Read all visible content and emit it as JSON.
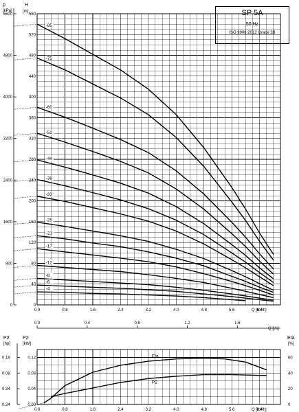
{
  "title_box": {
    "model": "SP 5A",
    "frequency": "50 Hz",
    "standard": "ISO 9906:2012 Grace 3B"
  },
  "chart_data": [
    {
      "type": "line",
      "title": "",
      "xlabel": "Q [m³/h]",
      "xlim": [
        0,
        7
      ],
      "xticks": [
        0.0,
        0.8,
        1.6,
        2.4,
        3.2,
        4.0,
        4.8,
        5.6,
        6.4
      ],
      "x_secondary_label": "Q [l/s]",
      "x_secondary_ticks": [
        0.0,
        0.4,
        0.8,
        1.2,
        1.6
      ],
      "ylabel_left": "p [kPa]",
      "yticks_left": [
        0,
        800,
        1600,
        2400,
        3200,
        4000,
        4800,
        5600
      ],
      "ylabel_right": "H [m]",
      "ylim": [
        0,
        560
      ],
      "yticks_right": [
        0,
        40,
        80,
        120,
        160,
        200,
        240,
        280,
        320,
        360,
        400,
        440,
        480,
        520,
        560
      ],
      "grid": true,
      "series": [
        {
          "name": "-85",
          "x": [
            0,
            0.8,
            1.6,
            2.4,
            3.2,
            4.0,
            4.8,
            5.6,
            6.0,
            6.4,
            6.8
          ],
          "y": [
            540,
            512,
            482,
            452,
            415,
            366,
            302,
            226,
            184,
            138,
            97
          ]
        },
        {
          "name": "-75",
          "x": [
            0,
            0.8,
            1.6,
            2.4,
            3.2,
            4.0,
            4.8,
            5.6,
            6.0,
            6.4,
            6.8
          ],
          "y": [
            475,
            452,
            425,
            398,
            366,
            322,
            266,
            198,
            162,
            122,
            86
          ]
        },
        {
          "name": "-60",
          "x": [
            0,
            0.8,
            1.6,
            2.4,
            3.2,
            4.0,
            4.8,
            5.6,
            6.0,
            6.4,
            6.8
          ],
          "y": [
            380,
            361,
            340,
            318,
            293,
            258,
            213,
            159,
            130,
            98,
            69
          ]
        },
        {
          "name": "-52",
          "x": [
            0,
            0.8,
            1.6,
            2.4,
            3.2,
            4.0,
            4.8,
            5.6,
            6.0,
            6.4,
            6.8
          ],
          "y": [
            330,
            313,
            295,
            276,
            254,
            223,
            184,
            137,
            112,
            84,
            59
          ]
        },
        {
          "name": "-44",
          "x": [
            0,
            0.8,
            1.6,
            2.4,
            3.2,
            4.0,
            4.8,
            5.6,
            6.0,
            6.4,
            6.8
          ],
          "y": [
            279,
            265,
            250,
            234,
            215,
            189,
            156,
            116,
            95,
            71,
            50
          ]
        },
        {
          "name": "-38",
          "x": [
            0,
            0.8,
            1.6,
            2.4,
            3.2,
            4.0,
            4.8,
            5.6,
            6.0,
            6.4,
            6.8
          ],
          "y": [
            241,
            229,
            216,
            202,
            185,
            163,
            135,
            100,
            82,
            62,
            43
          ]
        },
        {
          "name": "-33",
          "x": [
            0,
            0.8,
            1.6,
            2.4,
            3.2,
            4.0,
            4.8,
            5.6,
            6.0,
            6.4,
            6.8
          ],
          "y": [
            209,
            199,
            187,
            175,
            161,
            142,
            117,
            87,
            71,
            54,
            37
          ]
        },
        {
          "name": "-25",
          "x": [
            0,
            0.8,
            1.6,
            2.4,
            3.2,
            4.0,
            4.8,
            5.6,
            6.0,
            6.4,
            6.8
          ],
          "y": [
            159,
            151,
            142,
            133,
            122,
            107,
            89,
            66,
            54,
            41,
            28
          ]
        },
        {
          "name": "-21",
          "x": [
            0,
            0.8,
            1.6,
            2.4,
            3.2,
            4.0,
            4.8,
            5.6,
            6.0,
            6.4,
            6.8
          ],
          "y": [
            133,
            127,
            119,
            112,
            102,
            90,
            75,
            55,
            45,
            34,
            24
          ]
        },
        {
          "name": "-17",
          "x": [
            0,
            0.8,
            1.6,
            2.4,
            3.2,
            4.0,
            4.8,
            5.6,
            6.0,
            6.4,
            6.8
          ],
          "y": [
            108,
            102,
            96,
            90,
            83,
            73,
            60,
            45,
            37,
            28,
            19
          ]
        },
        {
          "name": "-12",
          "x": [
            0,
            0.8,
            1.6,
            2.4,
            3.2,
            4.0,
            4.8,
            5.6,
            6.0,
            6.4,
            6.8
          ],
          "y": [
            76,
            72,
            68,
            64,
            58,
            51,
            43,
            32,
            26,
            20,
            14
          ]
        },
        {
          "name": "-8",
          "x": [
            0,
            0.8,
            1.6,
            2.4,
            3.2,
            4.0,
            4.8,
            5.6,
            6.0,
            6.4,
            6.8
          ],
          "y": [
            51,
            48,
            45,
            42,
            39,
            34,
            28,
            21,
            17,
            13,
            9
          ]
        },
        {
          "name": "-6",
          "x": [
            0,
            0.8,
            1.6,
            2.4,
            3.2,
            4.0,
            4.8,
            5.6,
            6.0,
            6.4,
            6.8
          ],
          "y": [
            38,
            36,
            34,
            32,
            29,
            26,
            21,
            16,
            13,
            10,
            7
          ]
        },
        {
          "name": "-4",
          "x": [
            0,
            0.8,
            1.6,
            2.4,
            3.2,
            4.0,
            4.8,
            5.6,
            6.0
          ],
          "y": [
            25,
            24,
            22,
            21,
            19,
            17,
            14,
            10,
            8
          ]
        }
      ]
    },
    {
      "type": "line",
      "title": "",
      "xlabel": "Q [m³/h]",
      "xlim": [
        0,
        7
      ],
      "xticks": [
        0.0,
        0.8,
        1.6,
        2.4,
        3.2,
        4.0,
        4.8,
        5.6,
        6.4
      ],
      "ylabel_left_outer": "P2 [hp]",
      "yticks_left_outer": [
        0.16,
        0.08,
        0.34,
        0.24
      ],
      "ylabel_left_inner": "P2 [kW]",
      "yticks_left_inner": [
        0.12,
        0.08,
        0.04,
        0.0
      ],
      "ylabel_right": "Eta [%]",
      "yticks_right": [
        60,
        40,
        20,
        0
      ],
      "grid": true,
      "series": [
        {
          "name": "Eta",
          "x": [
            0.2,
            0.4,
            0.8,
            1.6,
            2.4,
            3.2,
            4.0,
            4.8,
            5.4,
            6.0,
            6.6
          ],
          "y": [
            2,
            8,
            24,
            41,
            50,
            55,
            58,
            59,
            58,
            54,
            44
          ]
        },
        {
          "name": "P2",
          "x": [
            0.4,
            0.8,
            1.6,
            2.4,
            3.2,
            4.0,
            4.8,
            5.6,
            6.4,
            6.6
          ],
          "y": [
            10,
            14,
            21,
            28,
            33,
            36,
            38,
            38,
            37,
            37
          ]
        }
      ]
    }
  ]
}
